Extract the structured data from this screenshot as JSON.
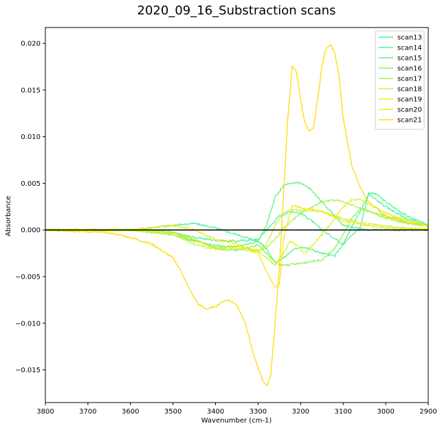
{
  "chart_data": {
    "type": "line",
    "title": "2020_09_16_Substraction scans",
    "xlabel": "Wavenumber (cm-1)",
    "ylabel": "Absorbance",
    "xlim": [
      3800,
      2900
    ],
    "x_reversed": true,
    "ylim": [
      -0.0185,
      0.0217
    ],
    "x_ticks": [
      3800,
      3700,
      3600,
      3500,
      3400,
      3300,
      3200,
      3100,
      3000,
      2900
    ],
    "y_ticks": [
      -0.015,
      -0.01,
      -0.005,
      0.0,
      0.005,
      0.01,
      0.015,
      0.02
    ],
    "x_tick_labels": [
      "3800",
      "3700",
      "3600",
      "3500",
      "3400",
      "3300",
      "3200",
      "3100",
      "3000",
      "2900"
    ],
    "y_tick_labels": [
      "−0.015",
      "−0.010",
      "−0.005",
      "0.000",
      "0.005",
      "0.010",
      "0.015",
      "0.020"
    ],
    "grid": false,
    "legend_position": "top-right",
    "baseline": {
      "y": 0,
      "color": "#000000"
    },
    "series": [
      {
        "name": "scan13",
        "color": "#52f29f",
        "x": [
          3800,
          3700,
          3600,
          3500,
          3450,
          3400,
          3350,
          3300,
          3270,
          3250,
          3220,
          3200,
          3180,
          3150,
          3100,
          3060,
          3040,
          3020,
          3000,
          2950,
          2900
        ],
        "y": [
          0.0,
          0.0,
          0.0,
          -0.0003,
          -0.0008,
          -0.0011,
          -0.0012,
          -0.001,
          0.0005,
          0.0015,
          0.002,
          0.0018,
          0.0012,
          0.0,
          -0.0015,
          0.0003,
          0.004,
          0.0038,
          0.003,
          0.0015,
          0.0005
        ]
      },
      {
        "name": "scan14",
        "color": "#4cf58f",
        "x": [
          3800,
          3700,
          3600,
          3500,
          3450,
          3400,
          3350,
          3300,
          3280,
          3260,
          3240,
          3220,
          3200,
          3180,
          3150,
          3120,
          3100,
          3060,
          3040,
          3000,
          2950,
          2900
        ],
        "y": [
          0.0,
          0.0,
          0.0,
          0.0005,
          0.0007,
          0.0002,
          -0.0005,
          -0.0012,
          -0.002,
          -0.0035,
          -0.003,
          -0.0022,
          -0.0018,
          -0.002,
          -0.0025,
          -0.0028,
          -0.0015,
          0.002,
          0.0038,
          0.0025,
          0.0012,
          0.0005
        ]
      },
      {
        "name": "scan15",
        "color": "#58f27e",
        "x": [
          3800,
          3700,
          3600,
          3500,
          3450,
          3400,
          3350,
          3300,
          3280,
          3260,
          3240,
          3220,
          3200,
          3180,
          3150,
          3120,
          3100,
          3050,
          3000,
          2950,
          2900
        ],
        "y": [
          0.0,
          0.0,
          0.0,
          -0.0005,
          -0.0012,
          -0.0017,
          -0.0018,
          -0.0012,
          0.0005,
          0.0035,
          0.0048,
          0.0051,
          0.005,
          0.0045,
          0.003,
          0.0015,
          0.0005,
          0.0,
          0.0,
          0.0,
          0.0
        ]
      },
      {
        "name": "scan16",
        "color": "#8df25a",
        "x": [
          3800,
          3700,
          3600,
          3500,
          3450,
          3400,
          3350,
          3300,
          3270,
          3250,
          3220,
          3200,
          3180,
          3150,
          3120,
          3100,
          3080,
          3060,
          3000,
          2950,
          2900
        ],
        "y": [
          0.0,
          0.0,
          0.0,
          -0.0002,
          -0.001,
          -0.002,
          -0.0022,
          -0.0016,
          -0.003,
          -0.0038,
          -0.0037,
          -0.0036,
          -0.0034,
          -0.0032,
          -0.002,
          -0.0005,
          0.0012,
          0.0022,
          0.0015,
          0.0008,
          0.0004
        ]
      },
      {
        "name": "scan17",
        "color": "#aaf24a",
        "x": [
          3800,
          3700,
          3600,
          3500,
          3450,
          3400,
          3350,
          3300,
          3280,
          3260,
          3240,
          3220,
          3200,
          3150,
          3120,
          3100,
          3050,
          3000,
          2950,
          2900
        ],
        "y": [
          0.0,
          0.0,
          0.0,
          -0.0003,
          -0.0012,
          -0.0019,
          -0.0017,
          -0.0022,
          -0.0018,
          -0.001,
          0.0002,
          0.001,
          0.0018,
          0.003,
          0.0032,
          0.003,
          0.0022,
          0.0013,
          0.0007,
          0.0004
        ]
      },
      {
        "name": "scan18",
        "color": "#c8f440",
        "x": [
          3800,
          3700,
          3600,
          3500,
          3450,
          3400,
          3350,
          3300,
          3280,
          3260,
          3240,
          3220,
          3200,
          3150,
          3100,
          3050,
          3000,
          2950,
          2900
        ],
        "y": [
          0.0,
          0.0,
          0.0,
          -0.0005,
          -0.0015,
          -0.0021,
          -0.002,
          -0.0024,
          -0.0015,
          0.0005,
          0.0018,
          0.0022,
          0.0021,
          0.002,
          0.0012,
          0.0007,
          0.0004,
          0.0002,
          0.0001
        ]
      },
      {
        "name": "scan19",
        "color": "#e0ef22",
        "x": [
          3800,
          3700,
          3600,
          3500,
          3450,
          3400,
          3350,
          3300,
          3280,
          3260,
          3240,
          3225,
          3210,
          3190,
          3170,
          3150,
          3120,
          3100,
          3080,
          3060,
          3040,
          3000,
          2950,
          2900
        ],
        "y": [
          0.0,
          0.0,
          0.0,
          -0.0003,
          -0.001,
          -0.002,
          -0.0018,
          -0.0022,
          -0.003,
          -0.0038,
          -0.0025,
          -0.0012,
          -0.0016,
          -0.0025,
          -0.0015,
          -0.0005,
          0.0012,
          0.0025,
          0.0032,
          0.0033,
          0.0028,
          0.0018,
          0.001,
          0.0005
        ]
      },
      {
        "name": "scan20",
        "color": "#f7e80d",
        "x": [
          3800,
          3700,
          3600,
          3500,
          3450,
          3400,
          3350,
          3300,
          3280,
          3260,
          3250,
          3240,
          3220,
          3200,
          3150,
          3100,
          3050,
          3000,
          2950,
          2900
        ],
        "y": [
          0.0,
          0.0,
          0.0,
          0.0005,
          0.0,
          -0.001,
          -0.0015,
          -0.0025,
          -0.0045,
          -0.0062,
          -0.0058,
          -0.001,
          0.0027,
          0.0024,
          0.002,
          0.001,
          0.0005,
          0.0002,
          0.0001,
          0.0
        ]
      },
      {
        "name": "scan21",
        "color": "#ffdd00",
        "x": [
          3800,
          3700,
          3650,
          3600,
          3550,
          3500,
          3480,
          3460,
          3440,
          3420,
          3400,
          3380,
          3370,
          3350,
          3330,
          3310,
          3290,
          3280,
          3270,
          3260,
          3250,
          3240,
          3230,
          3220,
          3210,
          3200,
          3190,
          3180,
          3170,
          3160,
          3150,
          3140,
          3130,
          3120,
          3110,
          3100,
          3080,
          3060,
          3040,
          3000,
          2950,
          2900
        ],
        "y": [
          0.0,
          -0.0002,
          -0.0003,
          -0.0008,
          -0.0015,
          -0.003,
          -0.0045,
          -0.0065,
          -0.008,
          -0.0085,
          -0.0082,
          -0.0076,
          -0.0075,
          -0.008,
          -0.01,
          -0.0135,
          -0.016,
          -0.0168,
          -0.0155,
          -0.01,
          -0.004,
          0.004,
          0.012,
          0.0175,
          0.017,
          0.014,
          0.0115,
          0.0105,
          0.011,
          0.014,
          0.0175,
          0.0195,
          0.0199,
          0.019,
          0.0165,
          0.012,
          0.007,
          0.0045,
          0.003,
          0.0015,
          0.0008,
          0.0005
        ]
      }
    ]
  }
}
